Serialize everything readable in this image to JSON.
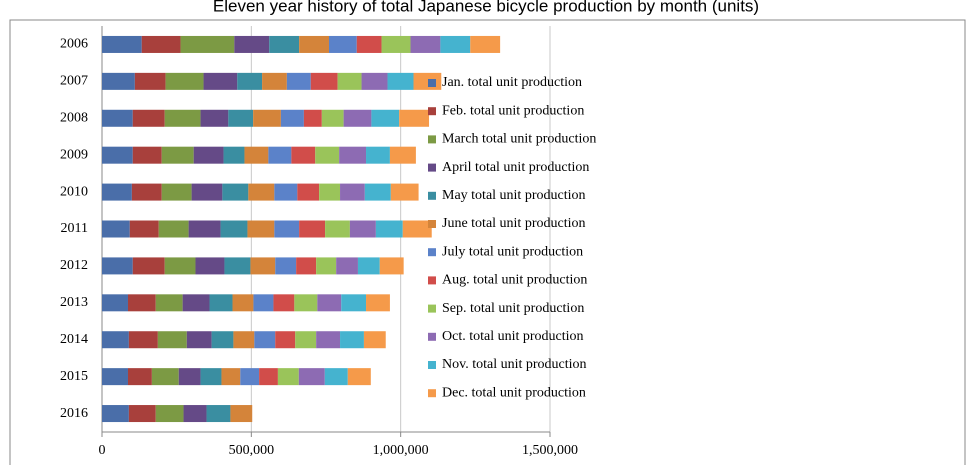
{
  "chart_data": {
    "type": "stacked-bar-horizontal",
    "title": "Eleven year history of total Japanese bicycle production by month (units)",
    "categories": [
      "2006",
      "2007",
      "2008",
      "2009",
      "2010",
      "2011",
      "2012",
      "2013",
      "2014",
      "2015",
      "2016"
    ],
    "series": [
      {
        "name": "Jan. total unit production",
        "color": "#4a6ea9",
        "values": [
          133000,
          110000,
          103000,
          103000,
          100000,
          93000,
          103000,
          87000,
          90000,
          87000,
          90000
        ]
      },
      {
        "name": "Feb. total unit production",
        "color": "#a8403c",
        "values": [
          130000,
          103000,
          107000,
          97000,
          100000,
          97000,
          107000,
          93000,
          97000,
          80000,
          90000
        ]
      },
      {
        "name": "March total unit production",
        "color": "#7c9a44",
        "values": [
          180000,
          127000,
          120000,
          107000,
          100000,
          100000,
          103000,
          90000,
          97000,
          90000,
          93000
        ]
      },
      {
        "name": "April total unit production",
        "color": "#654a87",
        "values": [
          117000,
          113000,
          93000,
          100000,
          103000,
          107000,
          97000,
          90000,
          83000,
          73000,
          77000
        ]
      },
      {
        "name": "May total unit production",
        "color": "#3a8ea1",
        "values": [
          100000,
          83000,
          83000,
          70000,
          87000,
          90000,
          87000,
          77000,
          73000,
          70000,
          80000
        ]
      },
      {
        "name": "June total unit production",
        "color": "#d4843a",
        "values": [
          100000,
          83000,
          93000,
          80000,
          87000,
          90000,
          83000,
          70000,
          70000,
          63000,
          73000
        ]
      },
      {
        "name": "July total unit production",
        "color": "#5b82c9",
        "values": [
          93000,
          80000,
          77000,
          77000,
          77000,
          83000,
          70000,
          67000,
          70000,
          63000,
          null
        ]
      },
      {
        "name": "Aug. total unit production",
        "color": "#d14d4a",
        "values": [
          83000,
          90000,
          60000,
          80000,
          73000,
          87000,
          67000,
          70000,
          67000,
          63000,
          null
        ]
      },
      {
        "name": "Sep. total unit production",
        "color": "#9ac45a",
        "values": [
          97000,
          80000,
          73000,
          80000,
          70000,
          83000,
          67000,
          77000,
          70000,
          70000,
          null
        ]
      },
      {
        "name": "Oct. total unit production",
        "color": "#8d6bb3",
        "values": [
          100000,
          87000,
          93000,
          90000,
          83000,
          87000,
          73000,
          80000,
          80000,
          87000,
          null
        ]
      },
      {
        "name": "Nov. total unit production",
        "color": "#45b3cf",
        "values": [
          100000,
          87000,
          93000,
          80000,
          87000,
          90000,
          73000,
          83000,
          80000,
          77000,
          null
        ]
      },
      {
        "name": "Dec. total unit production",
        "color": "#f59a4a",
        "values": [
          100000,
          93000,
          100000,
          87000,
          93000,
          97000,
          80000,
          80000,
          73000,
          77000,
          null
        ]
      }
    ],
    "xlim": [
      0,
      1500000
    ],
    "xticks": [
      0,
      {
        "value": 500000,
        "label": "500,000"
      },
      {
        "value": 1000000,
        "label": "1,000,000"
      },
      {
        "value": 1500000,
        "label": "1,500,000"
      }
    ],
    "grid": true
  }
}
